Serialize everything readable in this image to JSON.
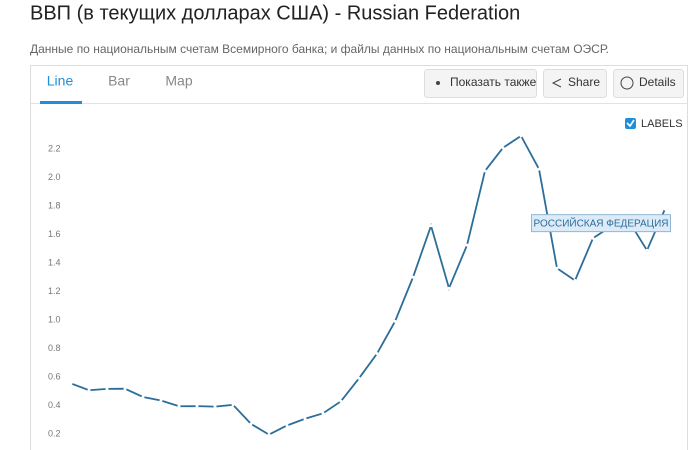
{
  "header": {
    "title": "ВВП (в текущих долларах США) - Russian Federation",
    "subtitle": "Данные по национальным счетам Всемирного банка; и файлы данных по национальным счетам ОЭСР."
  },
  "tabs": [
    "Line",
    "Bar",
    "Map"
  ],
  "buttons": [
    "Показать также",
    "Share",
    "Details"
  ],
  "chart_data": {
    "type": "line",
    "labels_toggle": "LABELS",
    "series": [
      {
        "name": "РОССИЙСКАЯ ФЕДЕРАЦИЯ",
        "color": "#2c6e99",
        "values": [
          0.555,
          0.507,
          0.517,
          0.518,
          0.46,
          0.435,
          0.395,
          0.396,
          0.392,
          0.405,
          0.271,
          0.196,
          0.26,
          0.307,
          0.345,
          0.43,
          0.591,
          0.764,
          0.99,
          1.3,
          1.661,
          1.223,
          1.525,
          2.046,
          2.208,
          2.292,
          2.059,
          1.363,
          1.277,
          1.574,
          1.657,
          1.693,
          1.489,
          1.779
        ]
      }
    ],
    "ylim": [
      0.09,
      2.35
    ],
    "yticks": [
      0.2,
      0.4,
      0.6,
      0.8,
      {
        "value": 1,
        "label": "1.0"
      },
      1.2,
      1.4,
      1.6,
      1.8,
      {
        "value": 2,
        "label": "2.0"
      },
      2.2
    ]
  }
}
